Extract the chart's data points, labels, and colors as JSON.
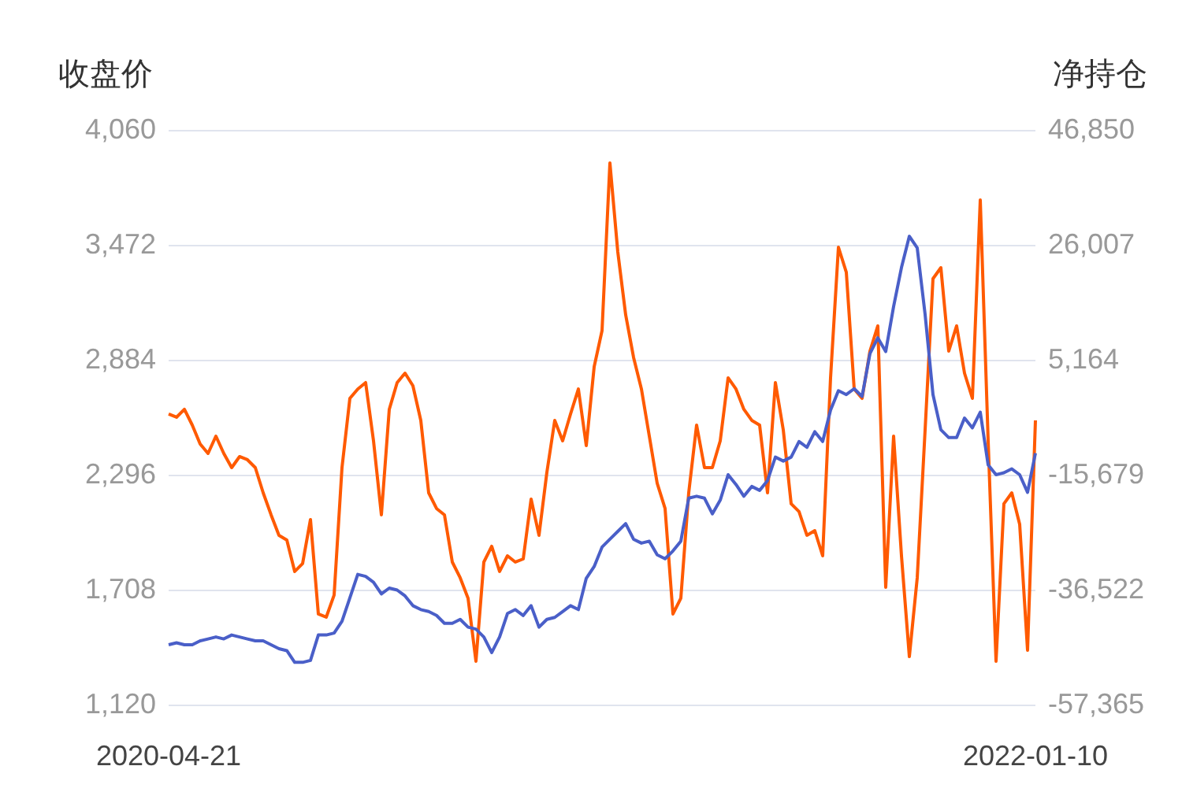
{
  "chart_data": {
    "type": "line",
    "ylabel": "收盘价",
    "y2label": "净持仓",
    "categories": [
      "2020-04-21",
      null,
      null,
      null,
      null,
      null,
      null,
      null,
      null,
      null,
      null,
      null,
      null,
      null,
      null,
      null,
      null,
      null,
      null,
      null,
      null,
      null,
      null,
      null,
      null,
      null,
      null,
      null,
      null,
      null,
      null,
      null,
      null,
      null,
      null,
      null,
      null,
      null,
      null,
      null,
      null,
      null,
      null,
      null,
      null,
      null,
      null,
      null,
      null,
      null,
      null,
      null,
      null,
      null,
      null,
      null,
      null,
      null,
      null,
      null,
      null,
      null,
      null,
      null,
      null,
      null,
      null,
      null,
      null,
      null,
      null,
      null,
      null,
      null,
      null,
      null,
      null,
      null,
      null,
      null,
      null,
      null,
      null,
      null,
      null,
      null,
      null,
      null,
      null,
      null,
      null,
      null,
      null,
      null,
      null,
      null,
      null,
      null,
      null,
      null,
      null,
      null,
      null,
      null,
      null,
      null,
      null,
      null,
      null,
      null,
      "2022-01-10"
    ],
    "series": [
      {
        "color": "#4a5fc8",
        "values": [
          1430,
          1440,
          1430,
          1430,
          1450,
          1460,
          1470,
          1460,
          1480,
          1470,
          1460,
          1450,
          1450,
          1430,
          1410,
          1400,
          1340,
          1340,
          1350,
          1480,
          1480,
          1490,
          1550,
          1670,
          1790,
          1780,
          1750,
          1690,
          1720,
          1710,
          1680,
          1630,
          1610,
          1600,
          1580,
          1540,
          1540,
          1560,
          1520,
          1510,
          1470,
          1390,
          1470,
          1590,
          1610,
          1580,
          1630,
          1520,
          1560,
          1570,
          1600,
          1630,
          1610,
          1770,
          1830,
          1930,
          1970,
          2010,
          2050,
          1970,
          1950,
          1960,
          1890,
          1870,
          1910,
          1960,
          2180,
          2190,
          2180,
          2100,
          2170,
          2300,
          2250,
          2190,
          2240,
          2220,
          2270,
          2390,
          2370,
          2390,
          2470,
          2440,
          2520,
          2470,
          2630,
          2730,
          2710,
          2740,
          2700,
          2920,
          3000,
          2930,
          3160,
          3360,
          3520,
          3460,
          3120,
          2710,
          2530,
          2490,
          2490,
          2590,
          2540,
          2620,
          2350,
          2300,
          2310,
          2330,
          2300,
          2210,
          2410
        ]
      },
      {
        "color": "#ff5a00",
        "axis": "y2",
        "values": [
          -4540,
          -5110,
          -3680,
          -6540,
          -9960,
          -11680,
          -8540,
          -11680,
          -14250,
          -12250,
          -12820,
          -14250,
          -18820,
          -22810,
          -26520,
          -27380,
          -33090,
          -31660,
          -23670,
          -40800,
          -41370,
          -37370,
          -14250,
          -1690,
          0,
          1170,
          -9390,
          -22810,
          -3680,
          1170,
          2880,
          600,
          -5680,
          -18820,
          -21670,
          -22810,
          -31380,
          -34230,
          -37940,
          -49360,
          -31380,
          -28520,
          -33090,
          -30240,
          -31380,
          -30810,
          -19960,
          -26520,
          -15100,
          -5680,
          -9390,
          -4540,
          0,
          -10250,
          4030,
          10590,
          41000,
          24870,
          13450,
          5740,
          0,
          -8540,
          -17100,
          -21670,
          -40800,
          -37940,
          -18820,
          -6540,
          -14250,
          -14250,
          -9390,
          2030,
          0,
          -3680,
          -5680,
          -6540,
          -18820,
          1170,
          -7400,
          -20810,
          -22240,
          -26520,
          -25670,
          -30240,
          2030,
          25720,
          21160,
          0,
          -1690,
          6880,
          11450,
          -35950,
          -8540,
          -30240,
          -48510,
          -34230,
          -7400,
          20010,
          22010,
          6880,
          11450,
          2880,
          -1690,
          34290,
          -9390,
          -49360,
          -20810,
          -18820,
          -24530,
          -47370,
          -5680
        ]
      }
    ],
    "ylim": [
      1120,
      4060
    ],
    "yticks": [
      {
        "value": 1120,
        "label": "1,120"
      },
      {
        "value": 1708,
        "label": "1,708"
      },
      {
        "value": 2296,
        "label": "2,296"
      },
      {
        "value": 2884,
        "label": "2,884"
      },
      {
        "value": 3472,
        "label": "3,472"
      },
      {
        "value": 4060,
        "label": "4,060"
      }
    ],
    "y2lim": [
      -57365,
      46850
    ],
    "y2ticks": [
      {
        "value": -57365,
        "label": "-57,365"
      },
      {
        "value": -36522,
        "label": "-36,522"
      },
      {
        "value": -15679,
        "label": "-15,679"
      },
      {
        "value": 5164,
        "label": "5,164"
      },
      {
        "value": 26007,
        "label": "26,007"
      },
      {
        "value": 46850,
        "label": "46,850"
      }
    ],
    "grid": "y",
    "legend": false,
    "marker": "none",
    "line_style": "solid"
  }
}
